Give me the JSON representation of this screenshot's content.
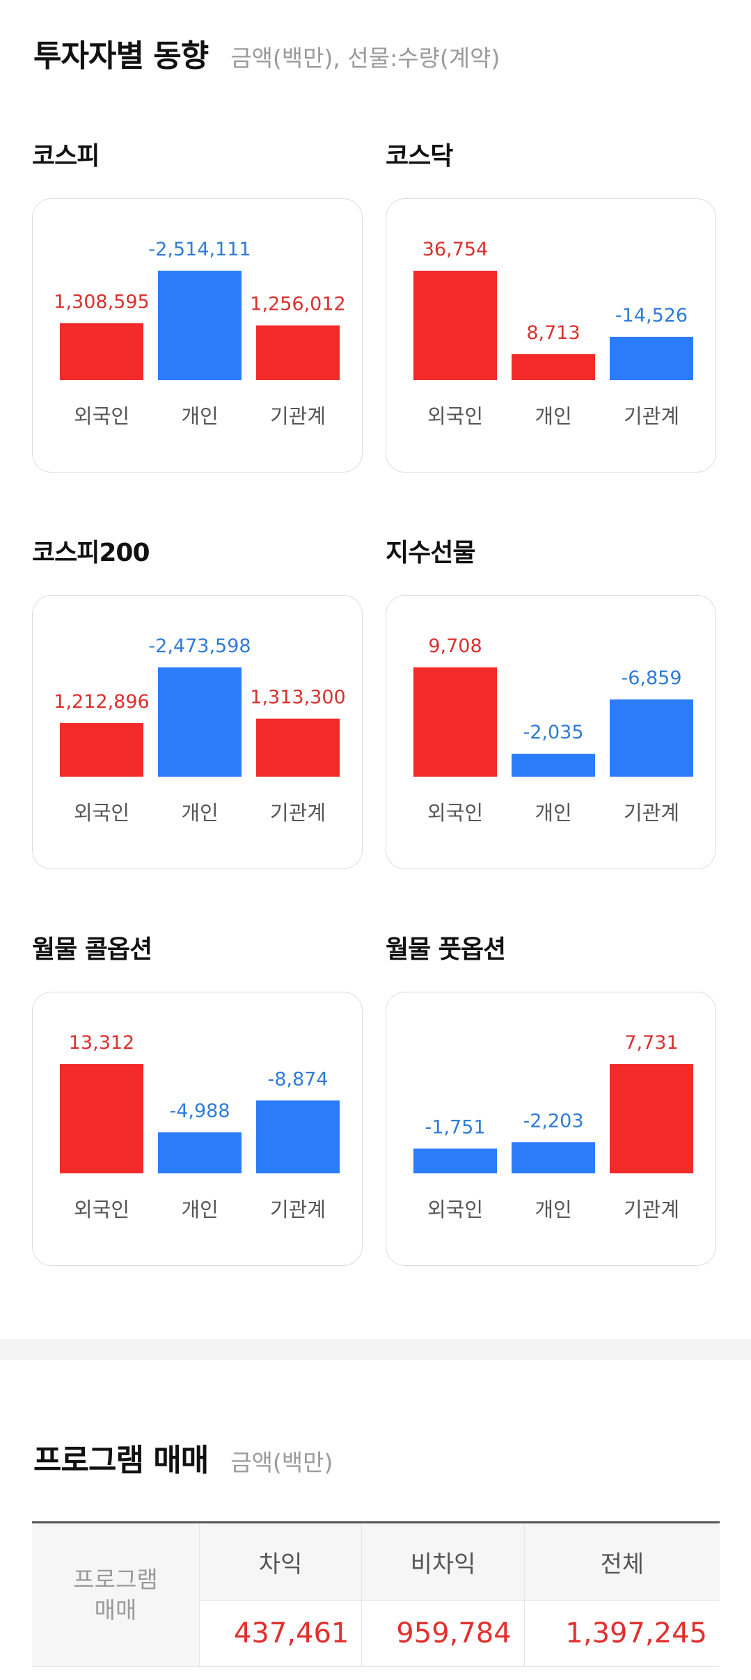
{
  "investor_trend": {
    "title": "투자자별 동향",
    "subtitle": "금액(백만), 선물:수량(계약)"
  },
  "colors": {
    "positive": "#f32a2a",
    "negative": "#2b7cfb",
    "positive_text": "#d9302e",
    "negative_text": "#2f7bd8"
  },
  "chart_data": [
    {
      "type": "bar",
      "title": "코스피",
      "categories": [
        "외국인",
        "개인",
        "기관계"
      ],
      "values": [
        1308595,
        -2514111,
        1256012
      ],
      "labels": [
        "1,308,595",
        "-2,514,111",
        "1,256,012"
      ]
    },
    {
      "type": "bar",
      "title": "코스닥",
      "categories": [
        "외국인",
        "개인",
        "기관계"
      ],
      "values": [
        36754,
        8713,
        -14526
      ],
      "labels": [
        "36,754",
        "8,713",
        "-14,526"
      ]
    },
    {
      "type": "bar",
      "title": "코스피200",
      "categories": [
        "외국인",
        "개인",
        "기관계"
      ],
      "values": [
        1212896,
        -2473598,
        1313300
      ],
      "labels": [
        "1,212,896",
        "-2,473,598",
        "1,313,300"
      ]
    },
    {
      "type": "bar",
      "title": "지수선물",
      "categories": [
        "외국인",
        "개인",
        "기관계"
      ],
      "values": [
        9708,
        -2035,
        -6859
      ],
      "labels": [
        "9,708",
        "-2,035",
        "-6,859"
      ]
    },
    {
      "type": "bar",
      "title": "월물 콜옵션",
      "categories": [
        "외국인",
        "개인",
        "기관계"
      ],
      "values": [
        13312,
        -4988,
        -8874
      ],
      "labels": [
        "13,312",
        "-4,988",
        "-8,874"
      ]
    },
    {
      "type": "bar",
      "title": "월물 풋옵션",
      "categories": [
        "외국인",
        "개인",
        "기관계"
      ],
      "values": [
        -1751,
        -2203,
        7731
      ],
      "labels": [
        "-1,751",
        "-2,203",
        "7,731"
      ]
    }
  ],
  "program_trading": {
    "title": "프로그램 매매",
    "subtitle": "금액(백만)",
    "row_header_line1": "프로그램",
    "row_header_line2": "매매",
    "columns": [
      "차익",
      "비차익",
      "전체"
    ],
    "values": [
      "437,461",
      "959,784",
      "1,397,245"
    ]
  }
}
